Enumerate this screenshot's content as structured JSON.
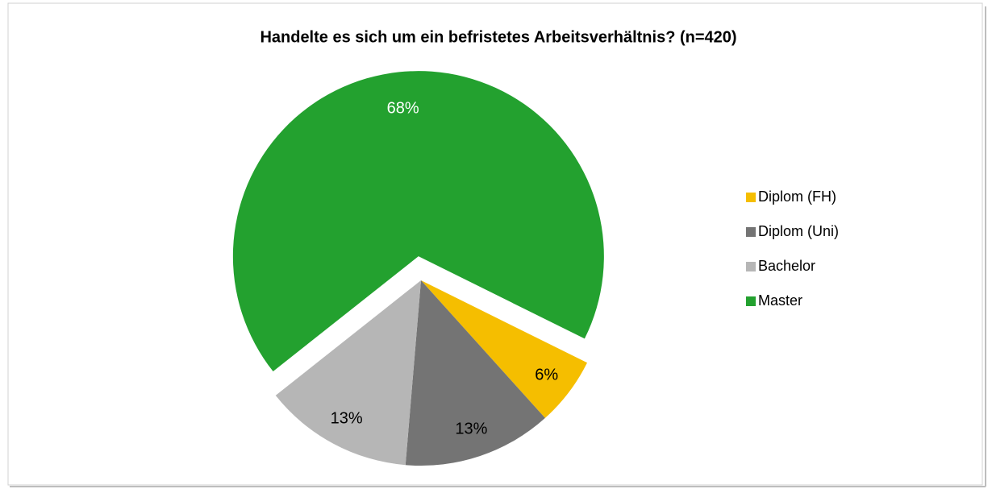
{
  "chart_data": {
    "type": "pie",
    "title": "Handelte es sich um ein befristetes Arbeitsverhältnis? (n=420)",
    "categories": [
      "Diplom (FH)",
      "Diplom (Uni)",
      "Bachelor",
      "Master"
    ],
    "values": [
      6,
      13,
      13,
      68
    ],
    "value_labels": [
      "6%",
      "13%",
      "13%",
      "68%"
    ],
    "colors": [
      "#f5be00",
      "#747474",
      "#b6b6b6",
      "#23a12f"
    ],
    "legend": "right"
  }
}
